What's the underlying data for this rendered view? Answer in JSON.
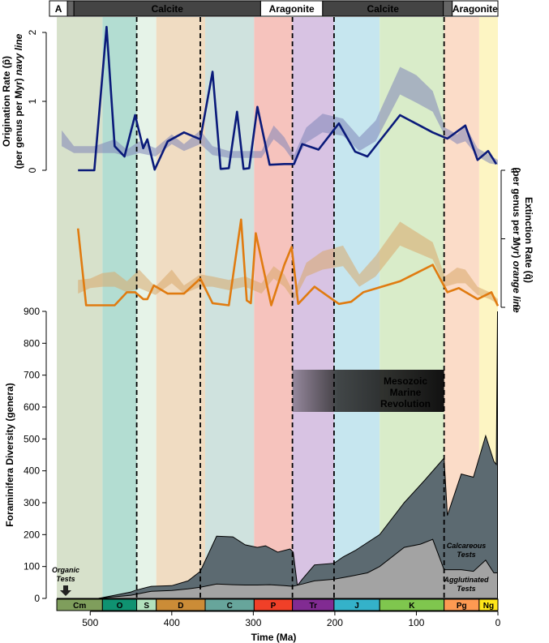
{
  "chart_data": {
    "type": "area",
    "x_axis": {
      "label": "Time (Ma)",
      "range": [
        550,
        0
      ],
      "ticks": [
        500,
        400,
        300,
        200,
        100,
        0
      ]
    },
    "mineralogy_bar": [
      {
        "label": "A",
        "from": 550,
        "to": 528,
        "type": "aragonite"
      },
      {
        "label": "",
        "from": 528,
        "to": 520,
        "type": "mixed"
      },
      {
        "label": "Calcite",
        "from": 520,
        "to": 291,
        "type": "calcite"
      },
      {
        "label": "Aragonite",
        "from": 291,
        "to": 215,
        "type": "aragonite"
      },
      {
        "label": "Calcite",
        "from": 215,
        "to": 67,
        "type": "calcite"
      },
      {
        "label": "",
        "from": 67,
        "to": 56,
        "type": "mixed"
      },
      {
        "label": "Aragonite",
        "from": 56,
        "to": 0,
        "type": "aragonite"
      }
    ],
    "periods": [
      {
        "label": "Cm",
        "from": 541,
        "to": 485,
        "band": "#d7e1cb",
        "box": "#7f9e5c"
      },
      {
        "label": "O",
        "from": 485,
        "to": 443,
        "band": "#b3ddd2",
        "box": "#0f9271"
      },
      {
        "label": "S",
        "from": 443,
        "to": 419,
        "band": "#e6f3e8",
        "box": "#b2e1bd"
      },
      {
        "label": "D",
        "from": 419,
        "to": 359,
        "band": "#f0dcc2",
        "box": "#cb8c37"
      },
      {
        "label": "C",
        "from": 359,
        "to": 299,
        "band": "#cfe2de",
        "box": "#67a59b"
      },
      {
        "label": "P",
        "from": 299,
        "to": 252,
        "band": "#f6c3bd",
        "box": "#f04028"
      },
      {
        "label": "Tr",
        "from": 252,
        "to": 201,
        "band": "#d8c3e3",
        "box": "#812b92"
      },
      {
        "label": "J",
        "from": 201,
        "to": 145,
        "band": "#c6e6ef",
        "box": "#34b2c9"
      },
      {
        "label": "K",
        "from": 145,
        "to": 66,
        "band": "#d9ecc9",
        "box": "#7fc64e"
      },
      {
        "label": "Pg",
        "from": 66,
        "to": 23,
        "band": "#fbdcc8",
        "box": "#fd9a52"
      },
      {
        "label": "Ng",
        "from": 23,
        "to": 0,
        "band": "#fdf5c3",
        "box": "#ffe619"
      }
    ],
    "extinction_boundaries": [
      443,
      365,
      252,
      201,
      66
    ],
    "origination": {
      "ylabel_line1": "Origination Rate (p̂)",
      "ylabel_line2": "(per genus per Myr)",
      "ylabel_emph": "navy line",
      "ylim": [
        0,
        2
      ],
      "ticks": [
        0,
        1,
        2
      ],
      "color": "#0a1a7a",
      "x": [
        515,
        495,
        480,
        470,
        458,
        445,
        435,
        430,
        421,
        405,
        385,
        365,
        350,
        340,
        330,
        320,
        312,
        305,
        295,
        280,
        262,
        250,
        240,
        220,
        195,
        175,
        160,
        120,
        80,
        62,
        40,
        25,
        12,
        2
      ],
      "values": [
        0,
        0,
        2.08,
        0.35,
        0.2,
        0.8,
        0.32,
        0.45,
        0.01,
        0.42,
        0.55,
        0.45,
        1.43,
        0.02,
        0.03,
        0.85,
        0.02,
        0.03,
        0.92,
        0.08,
        0.09,
        0.09,
        0.38,
        0.3,
        0.68,
        0.27,
        0.2,
        0.8,
        0.55,
        0.46,
        0.65,
        0.15,
        0.28,
        0.09
      ],
      "band_x": [
        535,
        520,
        495,
        470,
        455,
        440,
        420,
        400,
        385,
        365,
        350,
        330,
        310,
        290,
        275,
        262,
        250,
        235,
        215,
        190,
        170,
        150,
        120,
        100,
        80,
        65,
        50,
        40,
        25,
        10,
        0
      ],
      "band_lower": [
        0.35,
        0.25,
        0.25,
        0.25,
        0.2,
        0.25,
        0.2,
        0.38,
        0.28,
        0.38,
        0.22,
        0.18,
        0.18,
        0.18,
        0.45,
        0.32,
        0.12,
        0.4,
        0.55,
        0.5,
        0.28,
        0.42,
        1.1,
        0.98,
        0.85,
        0.5,
        0.38,
        0.42,
        0.2,
        0.1,
        0.08
      ],
      "band_upper": [
        0.58,
        0.35,
        0.35,
        0.45,
        0.3,
        0.42,
        0.32,
        0.52,
        0.38,
        0.58,
        0.35,
        0.28,
        0.28,
        0.28,
        0.65,
        0.48,
        0.22,
        0.62,
        0.82,
        0.75,
        0.48,
        0.72,
        1.5,
        1.38,
        1.15,
        0.62,
        0.52,
        0.65,
        0.32,
        0.22,
        0.15
      ]
    },
    "extinction": {
      "ylabel_line1": "Extinction Rate (q̂)",
      "ylabel_line2": "(per genus per Myr)",
      "ylabel_emph": "orange line",
      "ylim": [
        0,
        2
      ],
      "ticks": [
        0,
        1,
        2
      ],
      "color": "#e07b10",
      "x": [
        515,
        505,
        470,
        455,
        445,
        435,
        430,
        422,
        405,
        385,
        365,
        350,
        330,
        315,
        308,
        303,
        297,
        278,
        262,
        253,
        245,
        225,
        195,
        180,
        165,
        120,
        80,
        62,
        48,
        25,
        8,
        0
      ],
      "values": [
        1.15,
        0.03,
        0.03,
        0.22,
        0.22,
        0.12,
        0.12,
        0.32,
        0.2,
        0.2,
        0.42,
        0.06,
        0.03,
        1.28,
        0.1,
        0.06,
        1.08,
        0.03,
        0.62,
        0.88,
        0.05,
        0.3,
        0.05,
        0.08,
        0.22,
        0.38,
        0.62,
        0.22,
        0.28,
        0.12,
        0.22,
        0.02
      ],
      "band_x": [
        515,
        500,
        485,
        470,
        455,
        440,
        420,
        400,
        385,
        365,
        350,
        330,
        310,
        290,
        275,
        262,
        250,
        235,
        215,
        190,
        170,
        150,
        120,
        100,
        80,
        65,
        50,
        40,
        25,
        10,
        0
      ],
      "band_lower": [
        0.2,
        0.28,
        0.3,
        0.3,
        0.22,
        0.28,
        0.18,
        0.35,
        0.2,
        0.3,
        0.3,
        0.25,
        0.3,
        0.2,
        0.42,
        0.3,
        0.1,
        0.45,
        0.55,
        0.6,
        0.3,
        0.45,
        0.9,
        0.8,
        0.7,
        0.3,
        0.35,
        0.35,
        0.18,
        0.12,
        0.05
      ],
      "band_upper": [
        0.4,
        0.42,
        0.5,
        0.52,
        0.38,
        0.55,
        0.3,
        0.55,
        0.32,
        0.48,
        0.45,
        0.4,
        0.45,
        0.35,
        0.6,
        0.48,
        0.2,
        0.65,
        0.82,
        0.9,
        0.48,
        0.75,
        1.25,
        1.1,
        0.95,
        0.45,
        0.58,
        0.55,
        0.3,
        0.22,
        0.12
      ]
    },
    "diversity": {
      "ylabel": "Foraminifera Diversity (genera)",
      "ylim": [
        0,
        900
      ],
      "ticks": [
        0,
        100,
        200,
        300,
        400,
        500,
        600,
        700,
        800,
        900
      ],
      "total": {
        "name": "Calcareous Tests",
        "color": "#5c6a71",
        "x": [
          541,
          515,
          490,
          470,
          450,
          445,
          430,
          425,
          400,
          380,
          365,
          345,
          325,
          310,
          295,
          285,
          270,
          255,
          251,
          246,
          240,
          225,
          201,
          190,
          175,
          145,
          115,
          90,
          66,
          62,
          45,
          30,
          15,
          5,
          2,
          0.5
        ],
        "values": [
          0,
          0,
          0,
          10,
          20,
          25,
          35,
          38,
          40,
          55,
          85,
          195,
          193,
          168,
          160,
          165,
          145,
          155,
          145,
          40,
          60,
          105,
          110,
          130,
          150,
          200,
          300,
          370,
          440,
          260,
          390,
          380,
          510,
          430,
          420,
          900
        ]
      },
      "agglutinated": {
        "name": "Agglutinated Tests",
        "color": "#a3a3a3",
        "x": [
          541,
          515,
          490,
          470,
          450,
          440,
          430,
          425,
          400,
          380,
          365,
          345,
          325,
          310,
          295,
          280,
          262,
          252,
          240,
          225,
          201,
          180,
          160,
          145,
          115,
          95,
          80,
          66,
          45,
          30,
          15,
          5,
          0.5
        ],
        "values": [
          0,
          0,
          0,
          5,
          10,
          15,
          20,
          22,
          25,
          30,
          35,
          45,
          43,
          42,
          42,
          43,
          40,
          38,
          45,
          55,
          60,
          70,
          80,
          100,
          160,
          170,
          185,
          90,
          90,
          85,
          120,
          80,
          80
        ]
      },
      "annotations": [
        {
          "key": "organic",
          "text": "Organic Tests"
        },
        {
          "key": "calcareous",
          "text": "Calcareous Tests"
        },
        {
          "key": "agglutinated",
          "text": "Agglutinated Tests"
        },
        {
          "key": "mmr",
          "text": "Mesozoic Marine Revolution"
        }
      ]
    }
  }
}
